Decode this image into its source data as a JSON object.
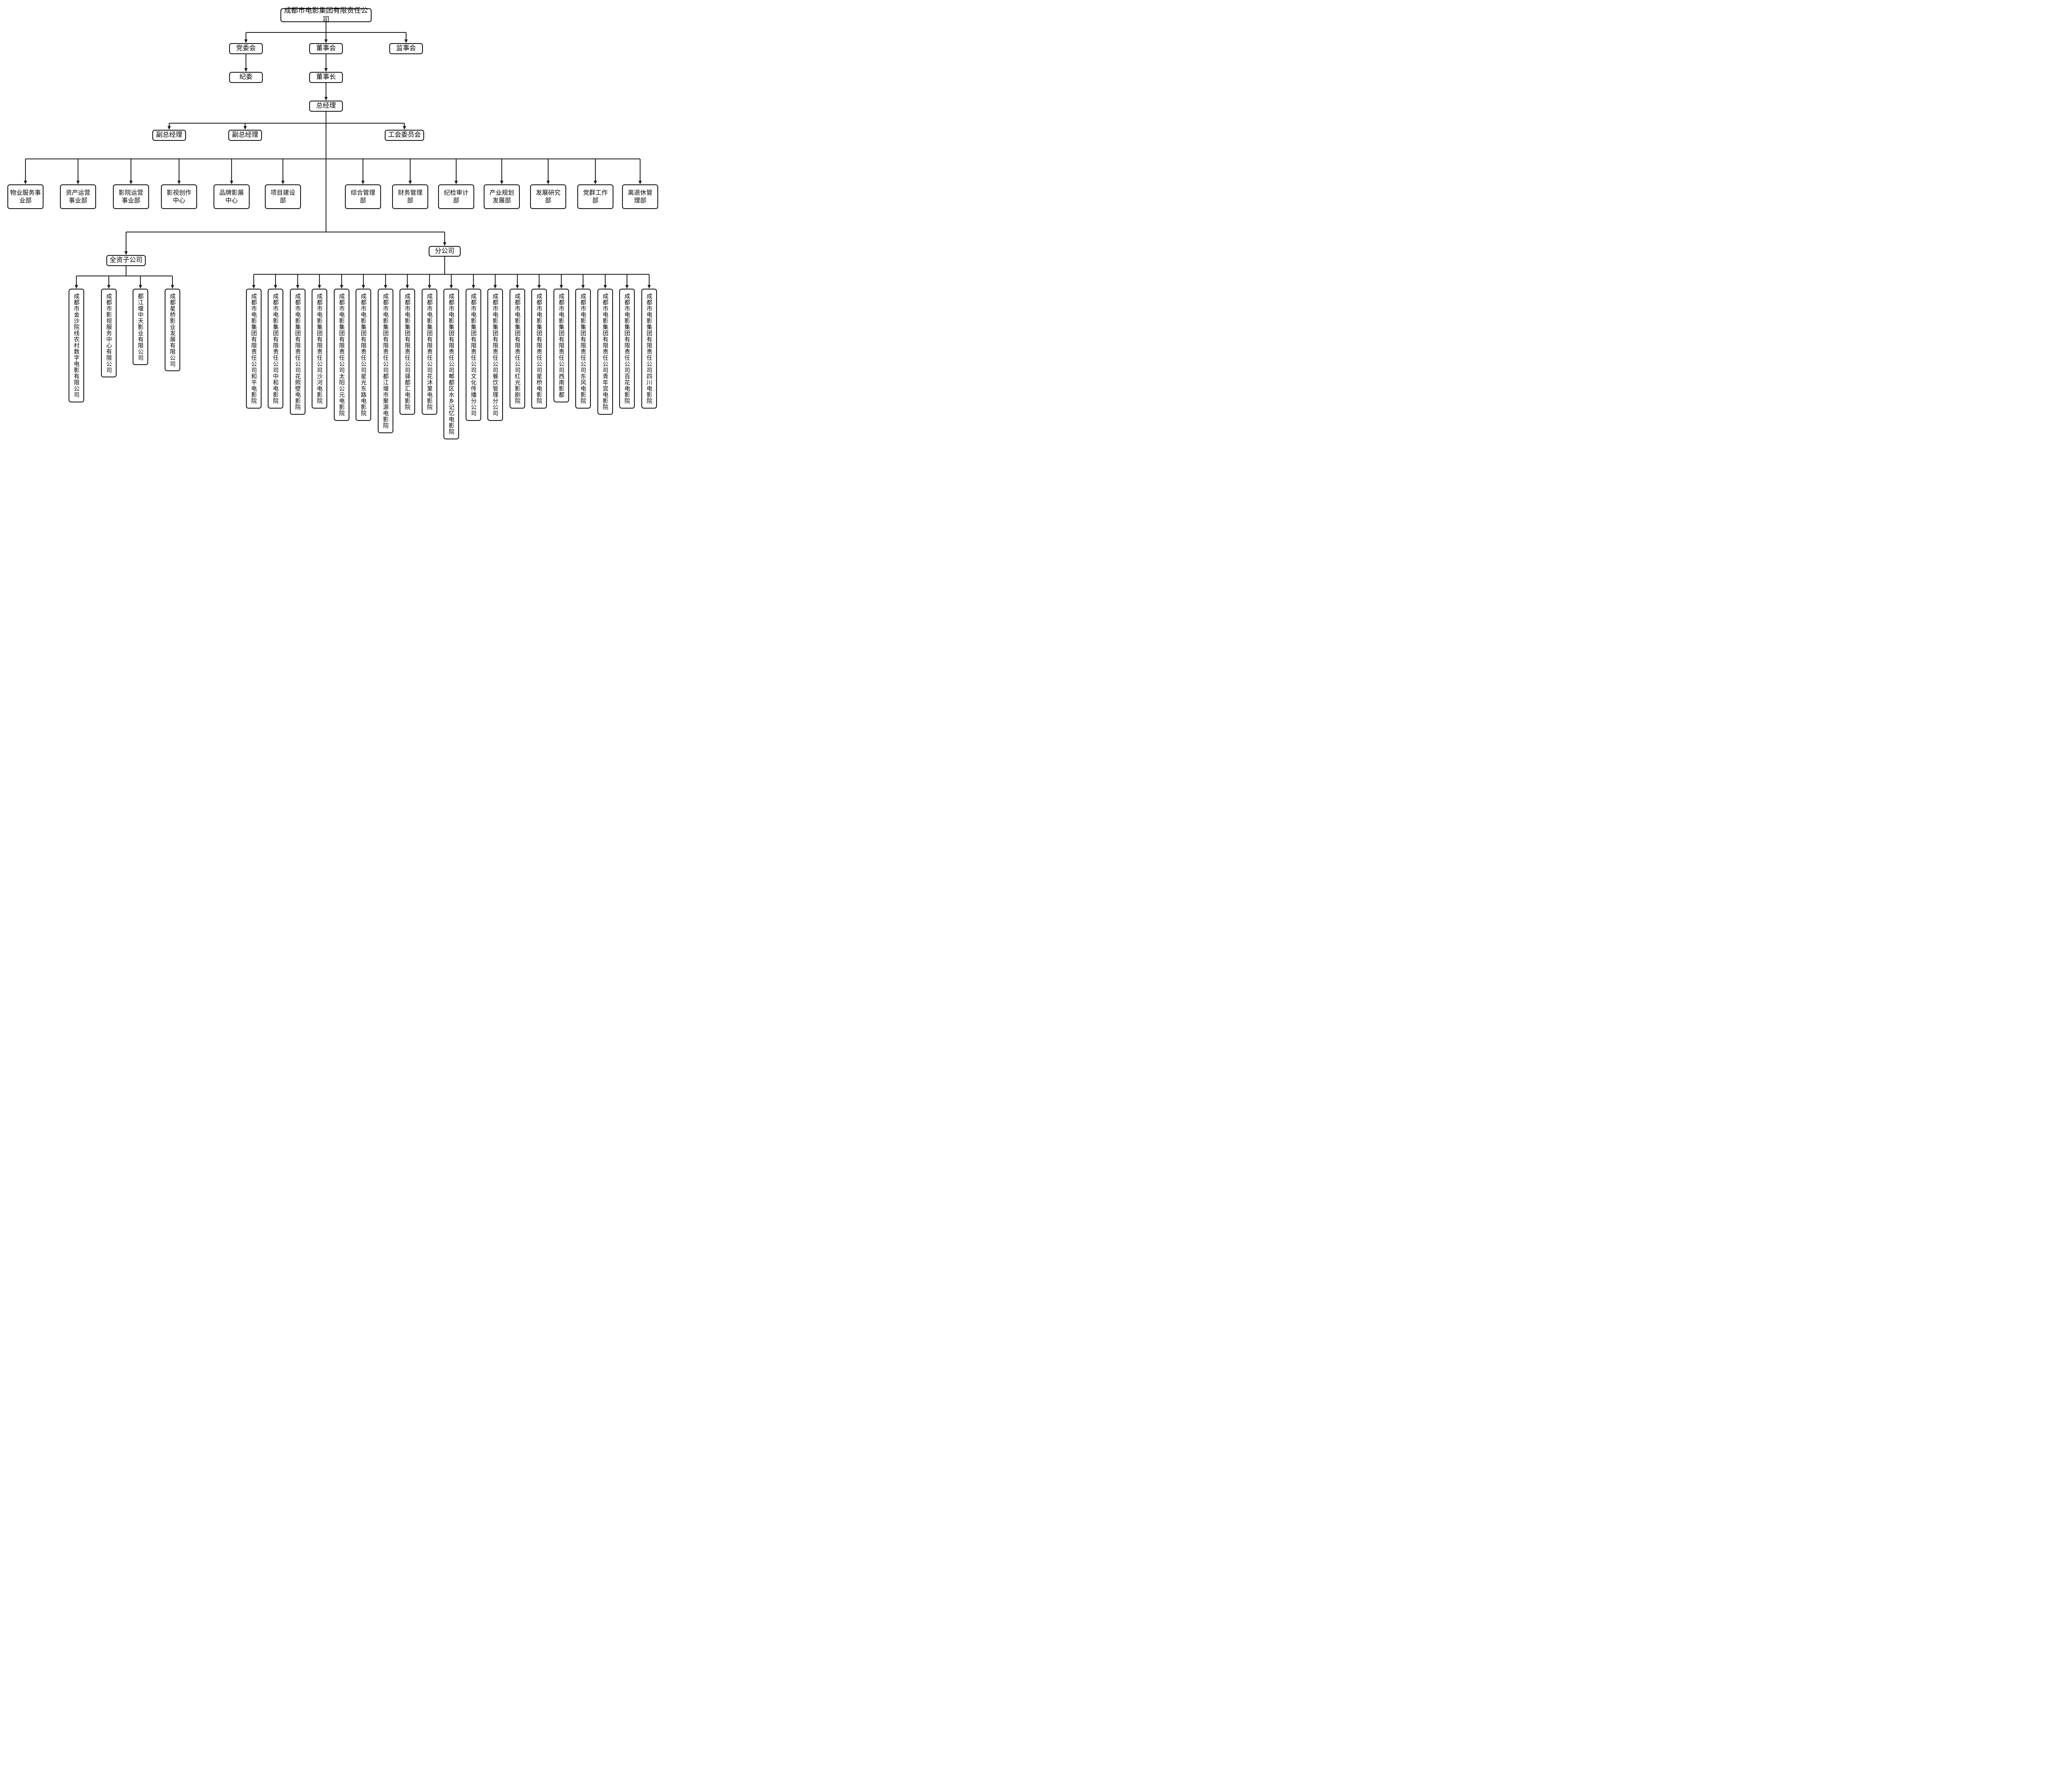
{
  "root": {
    "label": "成都市电影集团有限责任公司"
  },
  "governance": {
    "party_committee": "党委会",
    "board": "董事会",
    "supervisory_board": "监事会",
    "discipline_committee": "纪委",
    "chairman": "董事长",
    "general_manager": "总经理",
    "deputy_general_manager_1": "副总经理",
    "deputy_general_manager_2": "副总经理",
    "labor_union_committee": "工会委员会"
  },
  "departments": {
    "items": [
      "物业服务事\n业部",
      "资产运营\n事业部",
      "影院运营\n事业部",
      "影视创作\n中心",
      "品牌影展\n中心",
      "项目建设\n部",
      "综合管理\n部",
      "财务管理\n部",
      "纪检审计\n部",
      "产业规划\n发展部",
      "发展研究\n部",
      "党群工作\n部",
      "离退休管\n理部"
    ]
  },
  "subsidiaries": {
    "group_label": "全资子公司",
    "items": [
      "成都市金沙院线农村数字电影有限公司",
      "成都市影视服务中心有限公司",
      "都江堰中天影业有限公司",
      "成都星桥影业发展有限公司"
    ]
  },
  "branches": {
    "group_label": "分公司",
    "items": [
      "成都市电影集团有限责任公司和平电影院",
      "成都市电影集团有限责任公司中和电影院",
      "成都市电影集团有限责任公司花照壁电影院",
      "成都市电影集团有限责任公司沙河电影院",
      "成都市电影集团有限责任公司太阳公元电影院",
      "成都市电影集团有限责任公司星光东路电影院",
      "成都市电影集团有限责任公司都江堰市聚源电影院",
      "成都市电影集团有限责任公司驿都汇电影院",
      "成都市电影集团有限责任公司花沐里电影院",
      "成都市电影集团有限责任公司郫都区水乡记忆电影院",
      "成都市电影集团有限责任公司文化传播分公司",
      "成都市电影集团有限责任公司餐饮管理分公司",
      "成都市电影集团有限责任公司红光影剧院",
      "成都市电影集团有限责任公司星桥电影院",
      "成都市电影集团有限责任公司西南影都",
      "成都市电影集团有限责任公司东风电影院",
      "成都市电影集团有限责任公司青年宫电影院",
      "成都市电影集团有限责任公司百花电影院",
      "成都市电影集团有限责任公司四川电影院"
    ]
  },
  "colors": {
    "line": "#1a1a1a",
    "box_border": "#111111",
    "background": "#ffffff",
    "text": "#000000"
  }
}
